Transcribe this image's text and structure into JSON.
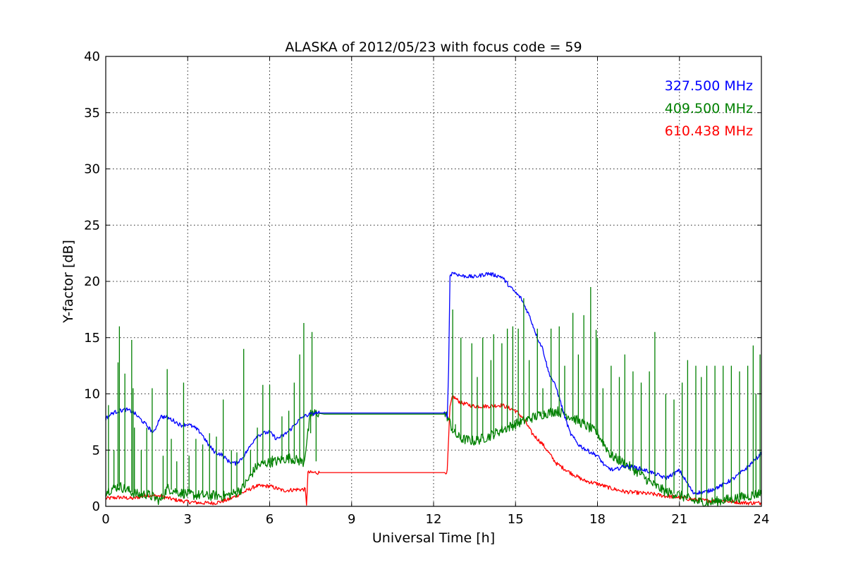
{
  "chart_data": {
    "type": "line",
    "title": "ALASKA of 2012/05/23 with focus code = 59",
    "xlabel": "Universal Time [h]",
    "ylabel": "Y-factor [dB]",
    "xlim": [
      0,
      24
    ],
    "ylim": [
      0,
      40
    ],
    "x_ticks": [
      0,
      3,
      6,
      9,
      12,
      15,
      18,
      21,
      24
    ],
    "x_tick_labels": [
      "0",
      "3",
      "6",
      "9",
      "12",
      "15",
      "18",
      "21",
      "24"
    ],
    "y_ticks": [
      0,
      5,
      10,
      15,
      20,
      25,
      30,
      35,
      40
    ],
    "y_tick_labels": [
      "0",
      "5",
      "10",
      "15",
      "20",
      "25",
      "30",
      "35",
      "40"
    ],
    "grid": true,
    "legend_position": "top-right",
    "series": [
      {
        "name": "327.500 MHz",
        "color": "#0000ff",
        "x": [
          0,
          0.25,
          0.5,
          0.75,
          1.0,
          1.25,
          1.5,
          1.75,
          2.0,
          2.25,
          2.5,
          2.75,
          3.0,
          3.25,
          3.5,
          3.75,
          4.0,
          4.25,
          4.5,
          4.75,
          5.0,
          5.25,
          5.5,
          5.75,
          6.0,
          6.25,
          6.5,
          6.75,
          7.0,
          7.25,
          7.5,
          7.75,
          8.0,
          9.0,
          10.0,
          11.0,
          12.0,
          12.4,
          12.5,
          12.55,
          12.6,
          12.7,
          13.0,
          13.5,
          14.0,
          14.5,
          14.8,
          15.0,
          15.2,
          15.5,
          15.8,
          16.0,
          16.2,
          16.5,
          16.8,
          17.0,
          17.3,
          17.6,
          18.0,
          18.3,
          18.6,
          19.0,
          19.5,
          20.0,
          20.5,
          21.0,
          21.5,
          22.0,
          22.5,
          23.0,
          23.5,
          24.0
        ],
        "y": [
          7.8,
          8.3,
          8.5,
          8.6,
          8.4,
          7.8,
          7.2,
          6.5,
          8.0,
          7.9,
          7.6,
          7.2,
          7.3,
          7.0,
          6.5,
          5.5,
          4.8,
          4.6,
          4.0,
          3.8,
          4.3,
          5.2,
          6.2,
          6.5,
          6.6,
          6.0,
          6.3,
          6.8,
          7.5,
          8.0,
          8.2,
          8.3,
          8.3,
          8.3,
          8.3,
          8.3,
          8.3,
          8.3,
          8.0,
          12.0,
          20.5,
          20.8,
          20.5,
          20.4,
          20.7,
          20.4,
          19.5,
          19.0,
          18.5,
          17.0,
          15.0,
          14.0,
          12.0,
          10.5,
          8.0,
          6.5,
          5.5,
          5.0,
          4.5,
          3.5,
          3.2,
          3.6,
          3.4,
          3.0,
          2.5,
          3.2,
          1.2,
          1.3,
          1.8,
          2.5,
          3.5,
          4.7
        ]
      },
      {
        "name": "409.500 MHz",
        "color": "#008000",
        "x": [
          0,
          0.25,
          0.5,
          0.75,
          1.0,
          1.25,
          1.5,
          1.75,
          2.0,
          2.25,
          2.5,
          2.75,
          3.0,
          3.25,
          3.5,
          3.75,
          4.0,
          4.25,
          4.5,
          4.75,
          5.0,
          5.25,
          5.5,
          5.75,
          6.0,
          6.25,
          6.5,
          6.75,
          7.0,
          7.25,
          7.5,
          7.75,
          8.0,
          9.0,
          10.0,
          11.0,
          12.0,
          12.4,
          12.5,
          12.75,
          13.0,
          13.5,
          14.0,
          14.5,
          15.0,
          15.5,
          16.0,
          16.5,
          17.0,
          17.5,
          18.0,
          18.5,
          19.0,
          19.5,
          20.0,
          20.5,
          21.0,
          21.5,
          22.0,
          22.5,
          23.0,
          23.5,
          24.0
        ],
        "y": [
          1.3,
          1.6,
          1.8,
          1.5,
          1.2,
          1.0,
          1.1,
          0.8,
          0.5,
          1.6,
          1.4,
          1.2,
          1.1,
          1.0,
          1.0,
          0.9,
          1.0,
          0.9,
          1.0,
          1.2,
          1.6,
          2.5,
          3.5,
          3.8,
          3.9,
          4.0,
          4.2,
          4.3,
          4.1,
          3.9,
          8.2,
          8.3,
          8.2,
          8.2,
          8.2,
          8.2,
          8.2,
          8.2,
          8.0,
          6.5,
          6.0,
          5.8,
          6.2,
          6.8,
          7.3,
          7.8,
          8.2,
          8.5,
          8.0,
          7.3,
          6.5,
          4.5,
          3.8,
          3.0,
          2.0,
          1.3,
          1.0,
          0.5,
          0.3,
          0.5,
          0.7,
          0.9,
          1.2
        ]
      },
      {
        "name": "610.438 MHz",
        "color": "#ff0000",
        "x": [
          0,
          0.5,
          1.0,
          1.5,
          2.0,
          2.5,
          3.0,
          3.5,
          4.0,
          4.5,
          5.0,
          5.5,
          6.0,
          6.5,
          7.0,
          7.3,
          7.35,
          7.4,
          8.0,
          9.0,
          10.0,
          11.0,
          12.0,
          12.4,
          12.5,
          12.6,
          12.7,
          13.0,
          13.5,
          14.0,
          14.5,
          15.0,
          15.3,
          15.6,
          16.0,
          16.5,
          17.0,
          17.5,
          18.0,
          18.5,
          19.0,
          19.5,
          20.0,
          20.5,
          21.0,
          21.5,
          22.0,
          22.5,
          23.0,
          23.5,
          24.0
        ],
        "y": [
          0.7,
          0.8,
          0.7,
          1.0,
          0.9,
          0.6,
          0.4,
          0.3,
          0.3,
          0.6,
          1.2,
          1.8,
          1.8,
          1.4,
          1.5,
          1.5,
          0.2,
          3.0,
          3.0,
          3.0,
          3.0,
          3.0,
          3.0,
          3.0,
          3.1,
          8.8,
          9.8,
          9.2,
          8.9,
          8.9,
          9.0,
          8.5,
          7.8,
          6.5,
          5.5,
          3.8,
          3.0,
          2.3,
          2.0,
          1.6,
          1.3,
          1.2,
          1.1,
          0.9,
          0.8,
          0.6,
          0.5,
          0.5,
          0.4,
          0.3,
          0.3
        ]
      }
    ],
    "spikes": [
      {
        "series": "409.500 MHz",
        "x": [
          0.1,
          0.3,
          0.45,
          0.5,
          0.7,
          0.95,
          1.0,
          1.05,
          1.3,
          1.5,
          1.7,
          2.1,
          2.25,
          2.4,
          2.6,
          2.85,
          3.05,
          3.3,
          3.55,
          3.8,
          4.05,
          4.3,
          4.6,
          4.8,
          5.05,
          5.3,
          5.55,
          5.75,
          6.0,
          6.1,
          6.45,
          6.7,
          6.9,
          7.1,
          7.25,
          7.5,
          7.55,
          7.7,
          12.7,
          12.8,
          13.0,
          13.4,
          13.6,
          13.8,
          14.1,
          14.2,
          14.5,
          14.7,
          14.9,
          15.1,
          15.3,
          15.5,
          15.8,
          16.0,
          16.3,
          16.6,
          16.8,
          17.1,
          17.3,
          17.5,
          17.75,
          17.95,
          18.0,
          18.2,
          18.5,
          18.8,
          19.0,
          19.3,
          19.6,
          19.9,
          20.1,
          20.5,
          20.8,
          21.1,
          21.3,
          21.6,
          21.8,
          22.0,
          22.3,
          22.6,
          22.9,
          23.2,
          23.5,
          23.7,
          23.8,
          23.95
        ],
        "peaks": [
          9.0,
          5.0,
          12.8,
          16.0,
          11.8,
          14.8,
          10.5,
          7.0,
          5.0,
          7.0,
          10.5,
          4.5,
          12.2,
          6.0,
          4.0,
          11.0,
          4.5,
          6.0,
          5.5,
          6.5,
          6.2,
          9.5,
          5.0,
          4.8,
          14.0,
          5.0,
          7.0,
          10.8,
          10.8,
          4.5,
          8.0,
          8.5,
          11.0,
          13.5,
          16.3,
          6.5,
          15.5,
          4.0,
          17.5,
          7.3,
          15.0,
          14.5,
          11.5,
          15.0,
          13.0,
          15.3,
          14.5,
          15.8,
          16.0,
          15.8,
          18.5,
          13.0,
          15.8,
          10.5,
          15.8,
          16.0,
          12.5,
          17.2,
          13.5,
          17.0,
          19.5,
          15.7,
          15.0,
          10.5,
          12.5,
          11.5,
          13.5,
          12.0,
          11.0,
          12.0,
          15.5,
          10.0,
          9.5,
          11.0,
          13.0,
          12.5,
          11.5,
          12.5,
          12.5,
          12.5,
          12.5,
          12.0,
          12.5,
          14.3,
          10.0,
          13.5
        ]
      }
    ]
  }
}
